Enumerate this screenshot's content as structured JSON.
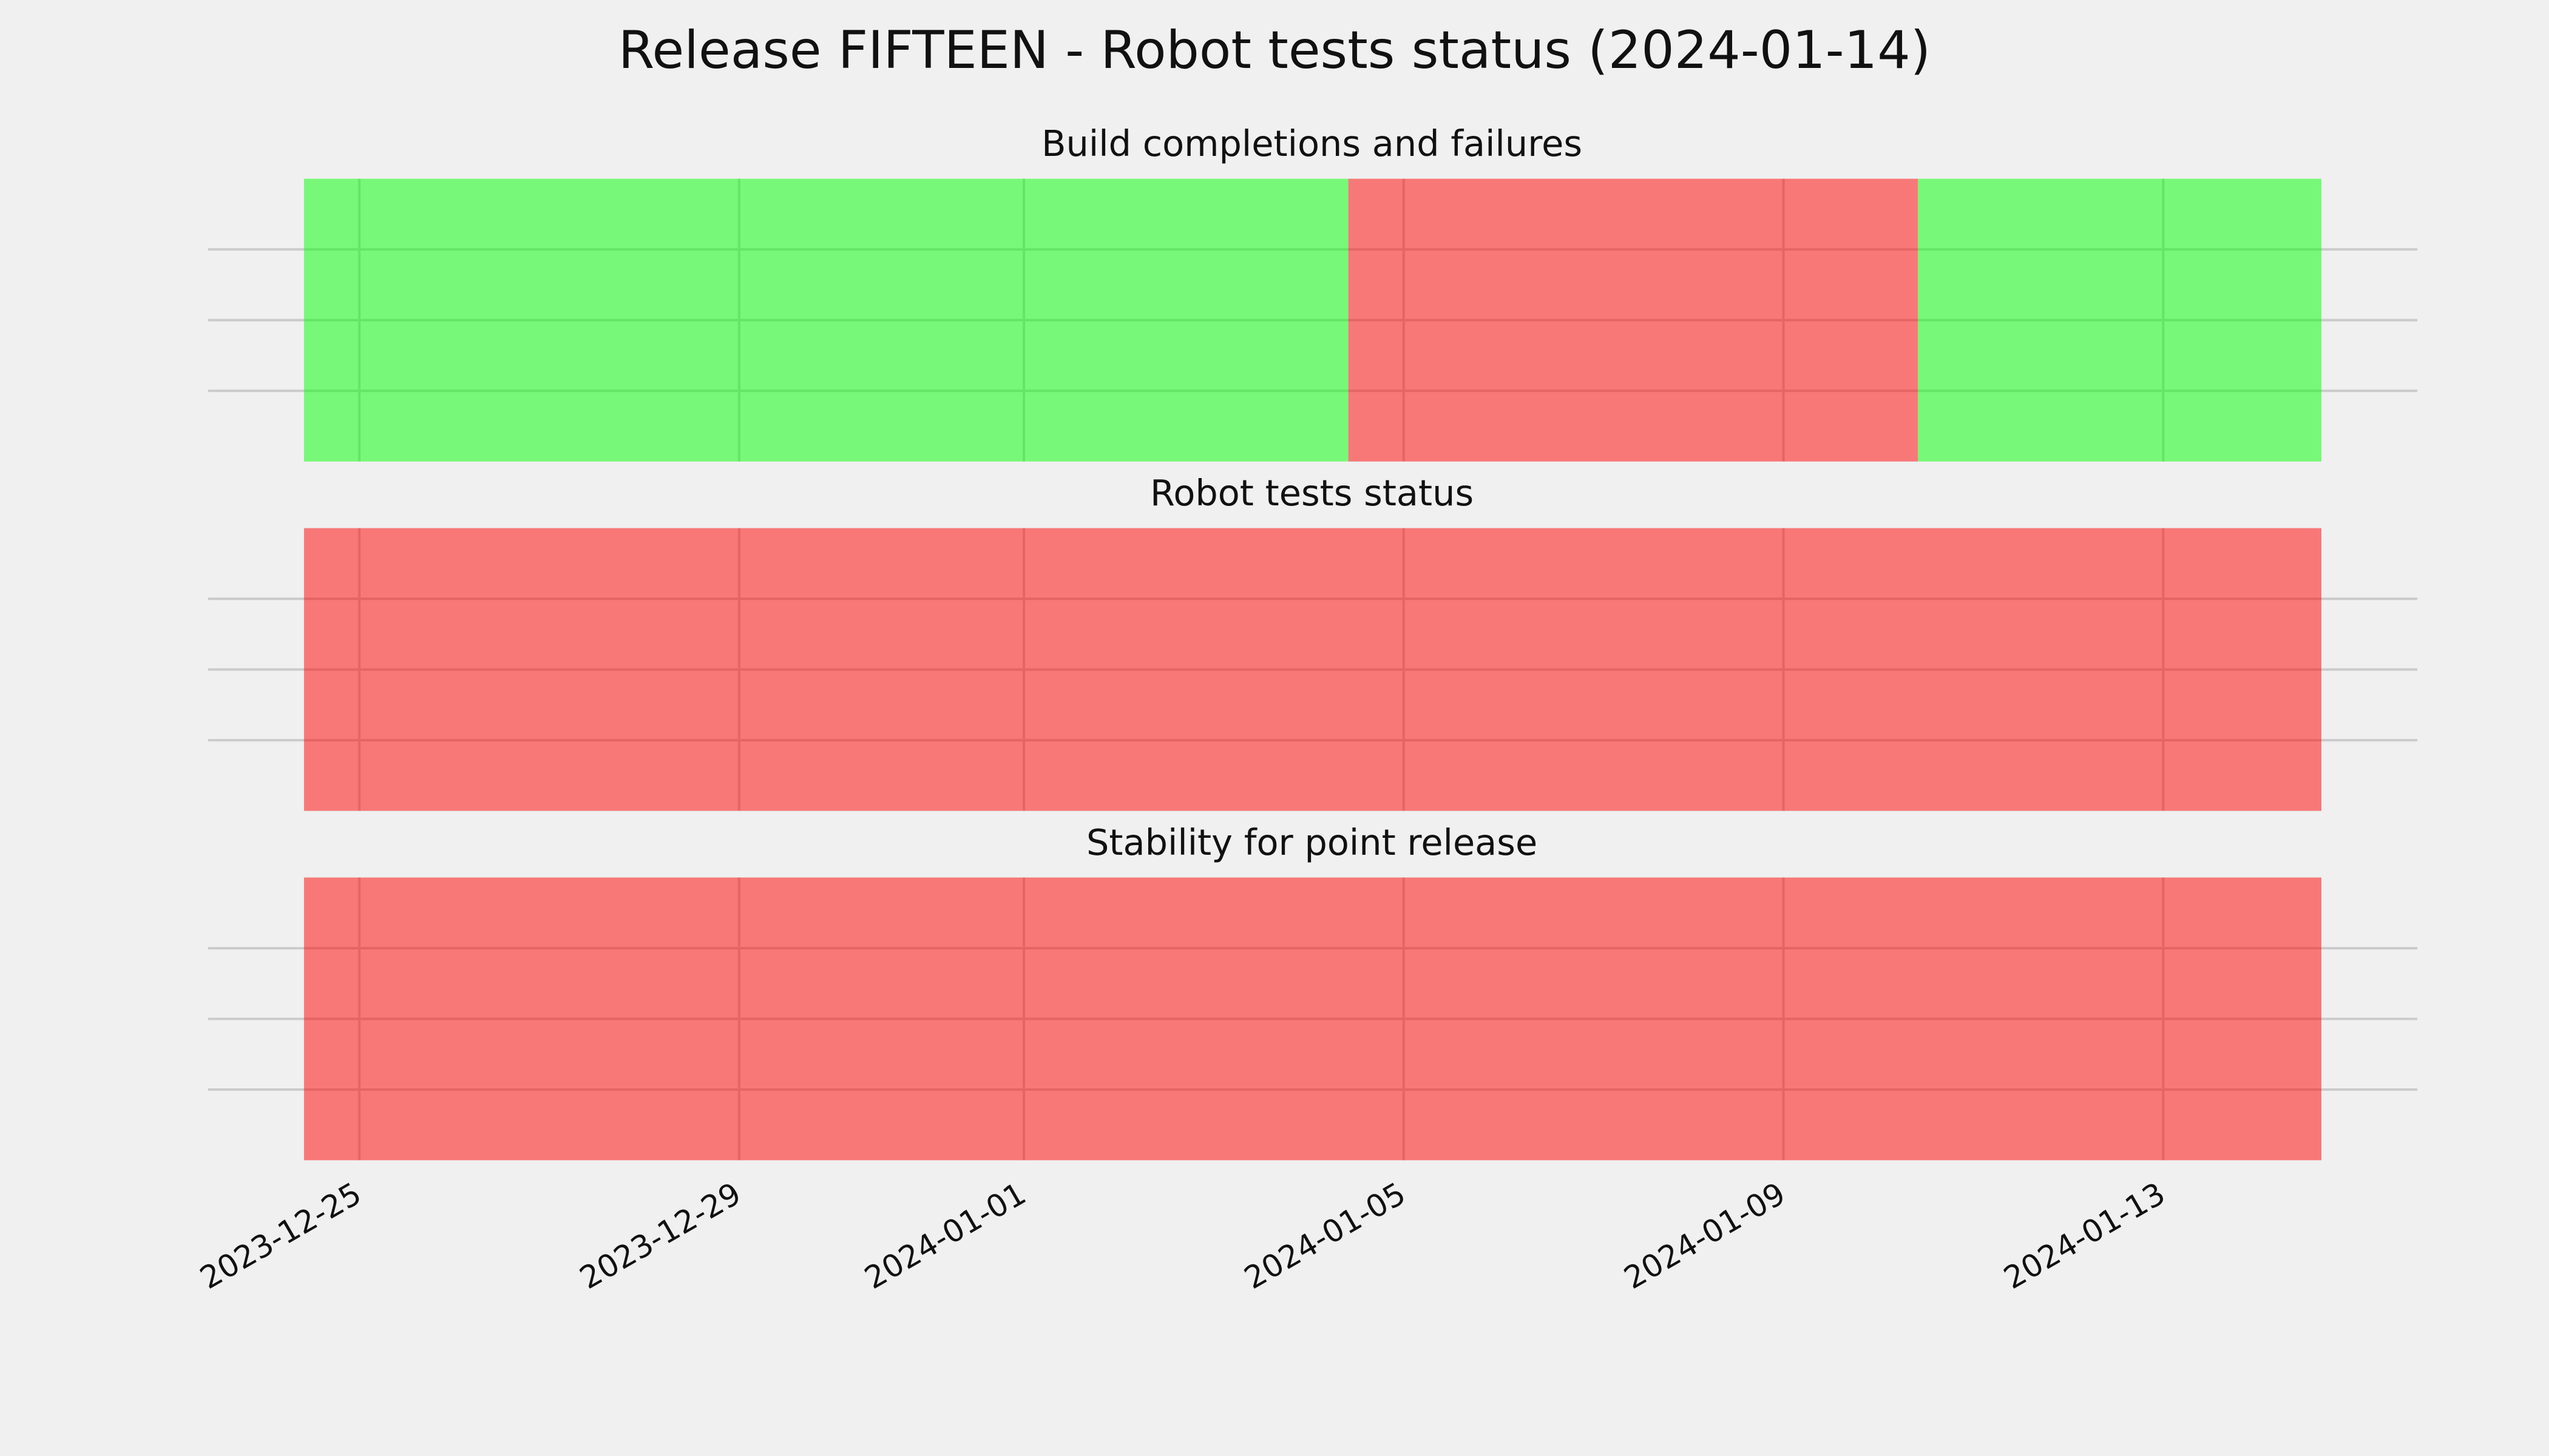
{
  "title": "Release FIFTEEN - Robot tests status (2024-01-14)",
  "x_axis": {
    "xlim": [
      "2023-12-24T10:00",
      "2024-01-14T16:00"
    ],
    "xticks": [
      "2023-12-25",
      "2023-12-29",
      "2024-01-01",
      "2024-01-05",
      "2024-01-09",
      "2024-01-13"
    ]
  },
  "chart_data": [
    {
      "type": "timeline",
      "title": "Build completions and failures",
      "spans": [
        {
          "start": "2023-12-24T10:00",
          "end": "2024-01-04T10:00",
          "color": "#00ff00"
        },
        {
          "start": "2024-01-04T10:00",
          "end": "2024-01-10T10:00",
          "color": "#ff0000"
        },
        {
          "start": "2024-01-10T10:00",
          "end": "2024-01-14T16:00",
          "color": "#00ff00"
        }
      ],
      "ylim": [
        0,
        1
      ],
      "yticks": [
        0.25,
        0.5,
        0.75
      ],
      "grid": true
    },
    {
      "type": "timeline",
      "title": "Robot tests status",
      "spans": [
        {
          "start": "2023-12-24T10:00",
          "end": "2024-01-14T16:00",
          "color": "#ff0000"
        }
      ],
      "ylim": [
        0,
        1
      ],
      "yticks": [
        0.25,
        0.5,
        0.75
      ],
      "grid": true
    },
    {
      "type": "timeline",
      "title": "Stability for point release",
      "spans": [
        {
          "start": "2023-12-24T10:00",
          "end": "2024-01-14T16:00",
          "color": "#ff0000"
        }
      ],
      "ylim": [
        0,
        1
      ],
      "yticks": [
        0.25,
        0.5,
        0.75
      ],
      "grid": true
    }
  ]
}
